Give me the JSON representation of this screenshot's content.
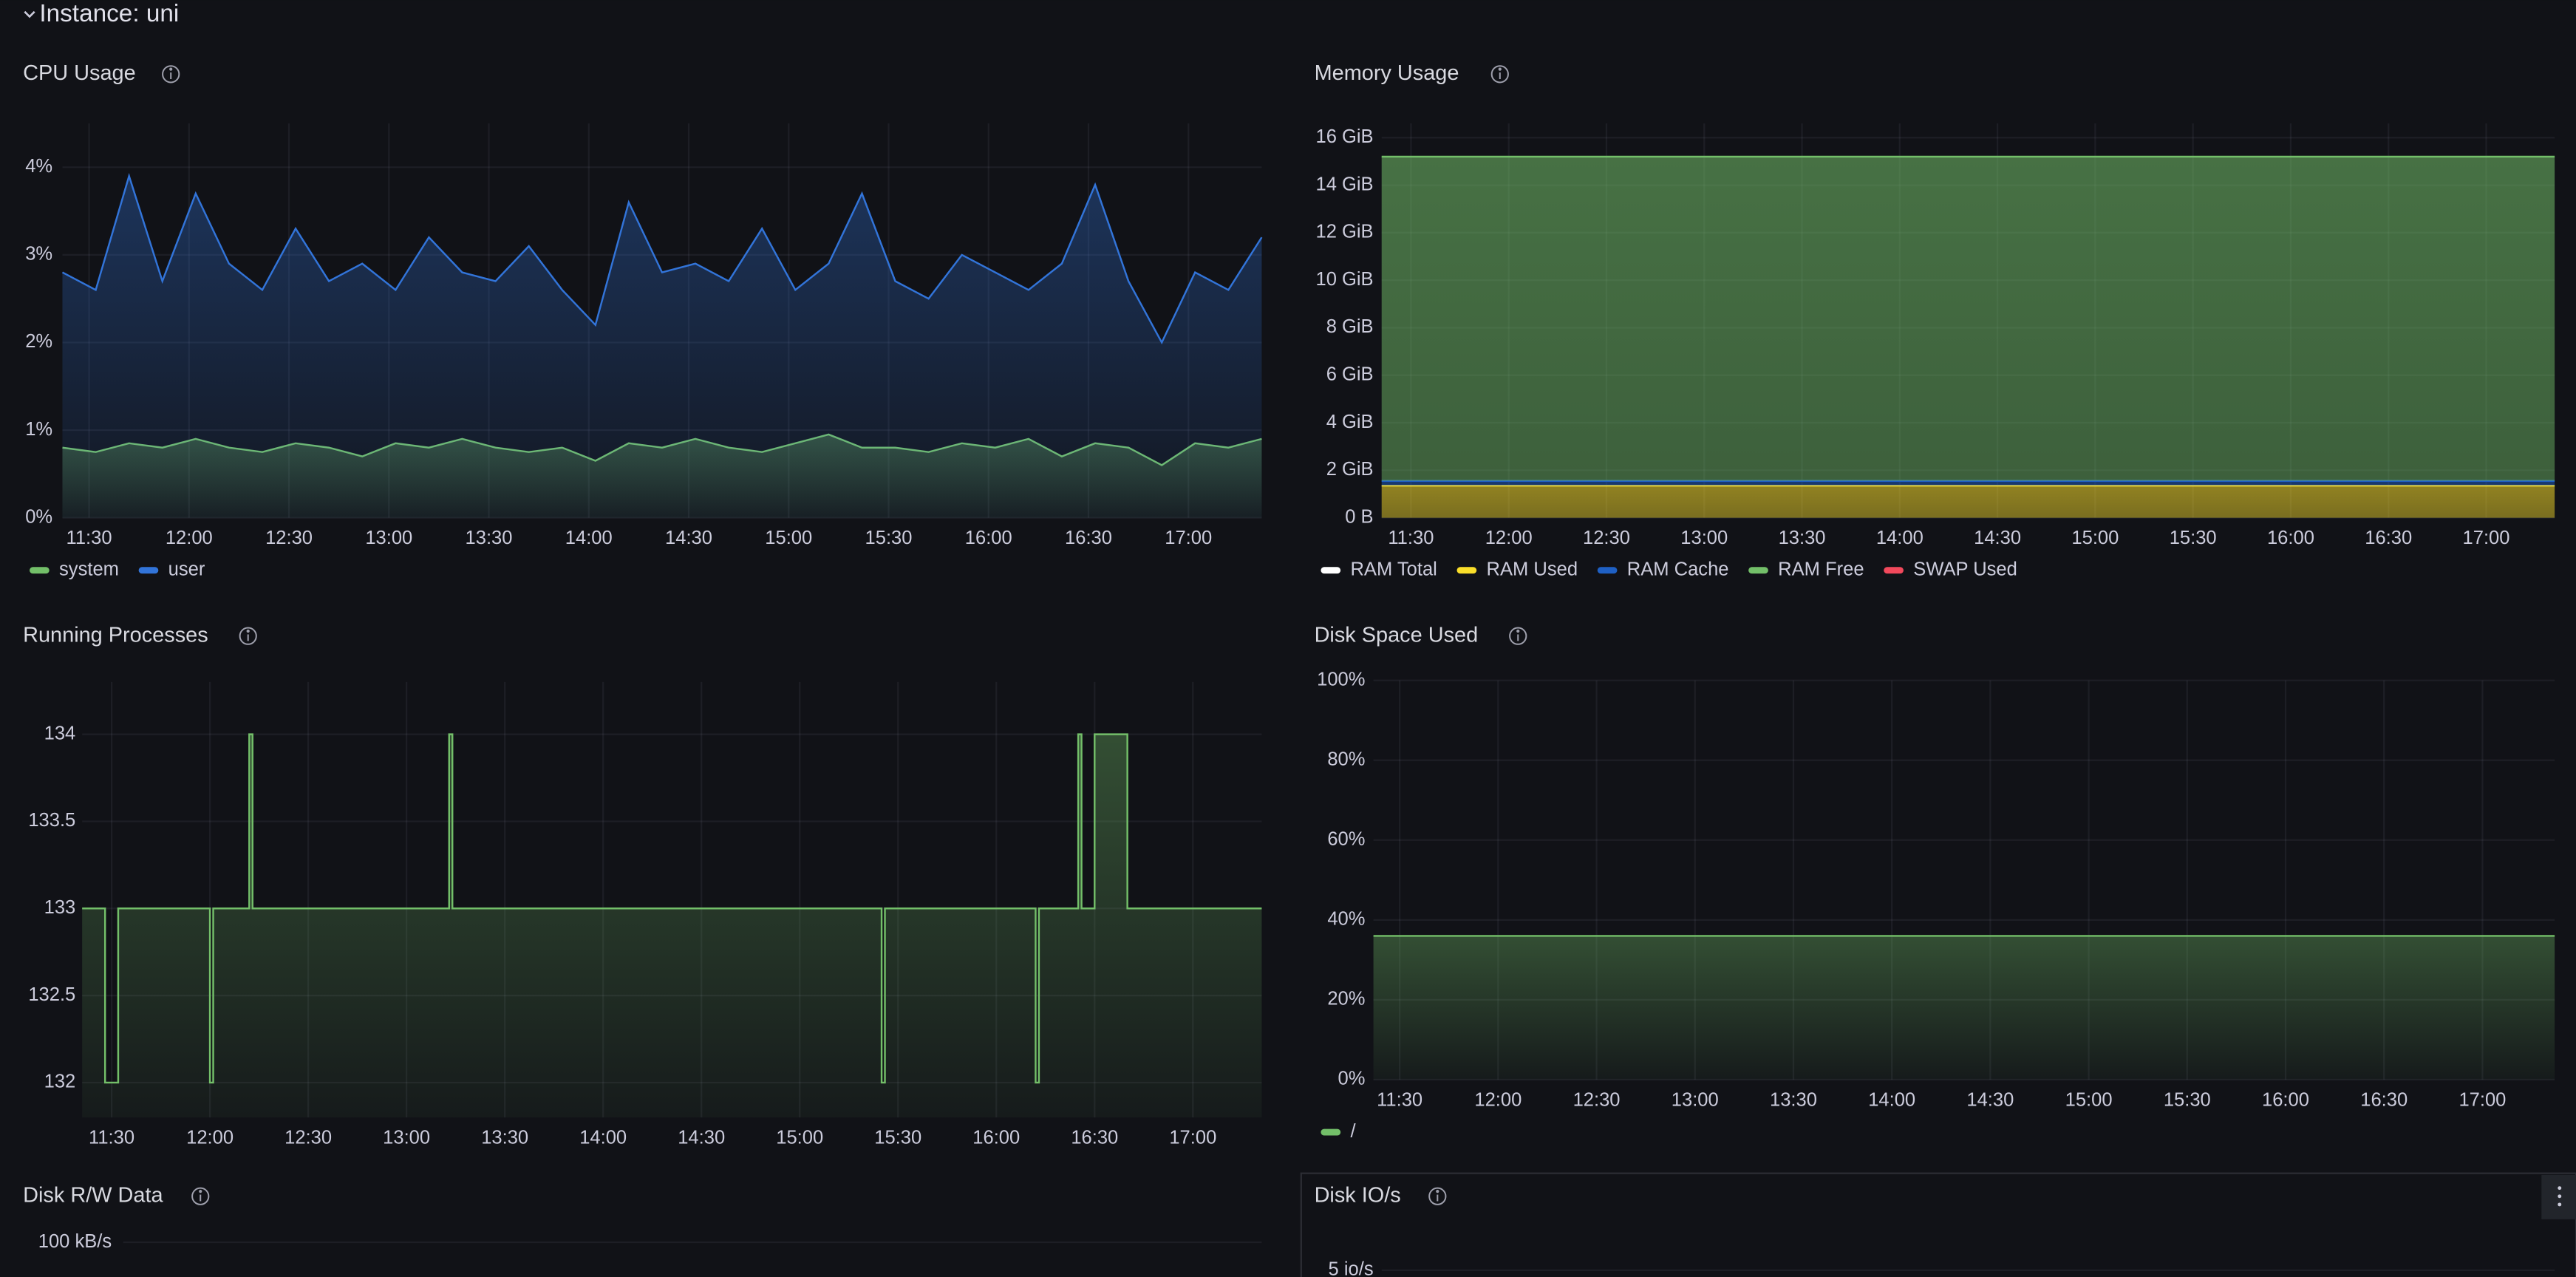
{
  "section_title": "Instance: uni",
  "chart_data": [
    {
      "type": "line",
      "title": "CPU Usage",
      "xlim": [
        "11:22",
        "17:22"
      ],
      "xticks": [
        "11:30",
        "12:00",
        "12:30",
        "13:00",
        "13:30",
        "14:00",
        "14:30",
        "15:00",
        "15:30",
        "16:00",
        "16:30",
        "17:00"
      ],
      "ylim": [
        0,
        4.5
      ],
      "yticks": [
        {
          "value": 0,
          "label": "0%"
        },
        {
          "value": 1,
          "label": "1%"
        },
        {
          "value": 2,
          "label": "2%"
        },
        {
          "value": 3,
          "label": "3%"
        },
        {
          "value": 4,
          "label": "4%"
        }
      ],
      "x": [
        "11:22",
        "11:32",
        "11:42",
        "11:52",
        "12:02",
        "12:12",
        "12:22",
        "12:32",
        "12:42",
        "12:52",
        "13:02",
        "13:12",
        "13:22",
        "13:32",
        "13:42",
        "13:52",
        "14:02",
        "14:12",
        "14:22",
        "14:32",
        "14:42",
        "14:52",
        "15:02",
        "15:12",
        "15:22",
        "15:32",
        "15:42",
        "15:52",
        "16:02",
        "16:12",
        "16:22",
        "16:32",
        "16:42",
        "16:52",
        "17:02",
        "17:12",
        "17:22"
      ],
      "series": [
        {
          "name": "system",
          "color": "#73bf69",
          "values": [
            0.8,
            0.75,
            0.85,
            0.8,
            0.9,
            0.8,
            0.75,
            0.85,
            0.8,
            0.7,
            0.85,
            0.8,
            0.9,
            0.8,
            0.75,
            0.8,
            0.65,
            0.85,
            0.8,
            0.9,
            0.8,
            0.75,
            0.85,
            0.95,
            0.8,
            0.8,
            0.75,
            0.85,
            0.8,
            0.9,
            0.7,
            0.85,
            0.8,
            0.6,
            0.85,
            0.8,
            0.9
          ]
        },
        {
          "name": "user",
          "color": "#3274d9",
          "values": [
            2.8,
            2.6,
            3.9,
            2.7,
            3.7,
            2.9,
            2.6,
            3.3,
            2.7,
            2.9,
            2.6,
            3.2,
            2.8,
            2.7,
            3.1,
            2.6,
            2.2,
            3.6,
            2.8,
            2.9,
            2.7,
            3.3,
            2.6,
            2.9,
            3.7,
            2.7,
            2.5,
            3.0,
            2.8,
            2.6,
            2.9,
            3.8,
            2.7,
            2.0,
            2.8,
            2.6,
            3.2
          ]
        }
      ]
    },
    {
      "type": "line",
      "title": "Memory Usage",
      "stacked": true,
      "xlim": [
        "11:21",
        "17:21"
      ],
      "xticks": [
        "11:30",
        "12:00",
        "12:30",
        "13:00",
        "13:30",
        "14:00",
        "14:30",
        "15:00",
        "15:30",
        "16:00",
        "16:30",
        "17:00"
      ],
      "ylim": [
        0,
        16.6
      ],
      "yticks": [
        {
          "value": 0,
          "label": "0 B"
        },
        {
          "value": 2,
          "label": "2 GiB"
        },
        {
          "value": 4,
          "label": "4 GiB"
        },
        {
          "value": 6,
          "label": "6 GiB"
        },
        {
          "value": 8,
          "label": "8 GiB"
        },
        {
          "value": 10,
          "label": "10 GiB"
        },
        {
          "value": 12,
          "label": "12 GiB"
        },
        {
          "value": 14,
          "label": "14 GiB"
        },
        {
          "value": 16,
          "label": "16 GiB"
        }
      ],
      "x": [
        "11:21",
        "17:21"
      ],
      "series": [
        {
          "name": "RAM Total",
          "color": "#ffffff"
        },
        {
          "name": "RAM Used",
          "color": "#fade2a",
          "values": [
            1.35,
            1.35
          ]
        },
        {
          "name": "RAM Cache",
          "color": "#1f60c4",
          "values": [
            0.2,
            0.2
          ]
        },
        {
          "name": "RAM Free",
          "color": "#73bf69",
          "values": [
            13.65,
            13.65
          ]
        },
        {
          "name": "SWAP Used",
          "color": "#f2495c"
        }
      ]
    },
    {
      "type": "line",
      "title": "Running Processes",
      "step": true,
      "xlim": [
        "11:21",
        "17:21"
      ],
      "xticks": [
        "11:30",
        "12:00",
        "12:30",
        "13:00",
        "13:30",
        "14:00",
        "14:30",
        "15:00",
        "15:30",
        "16:00",
        "16:30",
        "17:00"
      ],
      "ylim": [
        131.8,
        134.3
      ],
      "yticks": [
        132,
        132.5,
        133,
        133.5,
        134
      ],
      "x": [
        "11:21",
        "11:28",
        "11:32",
        "12:00",
        "12:01",
        "12:12",
        "12:13",
        "13:13",
        "13:14",
        "15:25",
        "15:26",
        "16:12",
        "16:13",
        "16:25",
        "16:26",
        "16:30",
        "16:40",
        "17:21"
      ],
      "series": [
        {
          "name": "processes",
          "color": "#73bf69",
          "values": [
            133,
            132,
            133,
            132,
            133,
            134,
            133,
            134,
            133,
            132,
            133,
            132,
            133,
            134,
            133,
            134,
            133,
            133
          ]
        }
      ]
    },
    {
      "type": "line",
      "title": "Disk Space Used",
      "xlim": [
        "11:22",
        "17:22"
      ],
      "xticks": [
        "11:30",
        "12:00",
        "12:30",
        "13:00",
        "13:30",
        "14:00",
        "14:30",
        "15:00",
        "15:30",
        "16:00",
        "16:30",
        "17:00"
      ],
      "ylim": [
        0,
        100
      ],
      "yticks": [
        {
          "value": 0,
          "label": "0%"
        },
        {
          "value": 20,
          "label": "20%"
        },
        {
          "value": 40,
          "label": "40%"
        },
        {
          "value": 60,
          "label": "60%"
        },
        {
          "value": 80,
          "label": "80%"
        },
        {
          "value": 100,
          "label": "100%"
        }
      ],
      "x": [
        "11:22",
        "17:22"
      ],
      "series": [
        {
          "name": "/",
          "color": "#73bf69",
          "values": [
            36,
            36
          ]
        }
      ]
    },
    {
      "type": "line",
      "title": "Disk R/W Data",
      "yticks": [
        {
          "value": 100,
          "label": "100 kB/s"
        }
      ]
    },
    {
      "type": "line",
      "title": "Disk IO/s",
      "yticks": [
        {
          "value": 5,
          "label": "5 io/s"
        }
      ]
    }
  ]
}
